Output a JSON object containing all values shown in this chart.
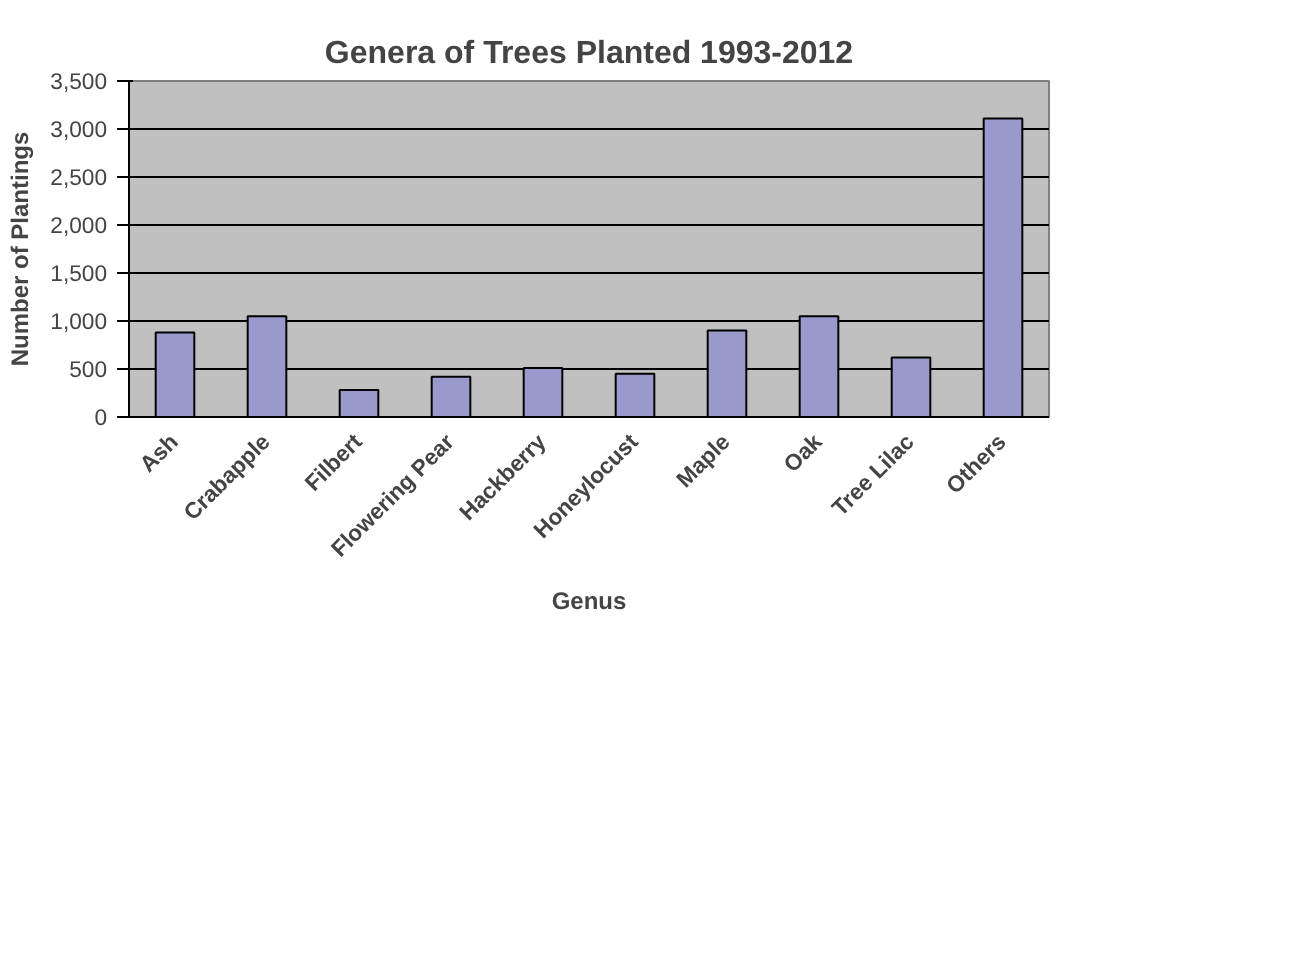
{
  "chart_data": {
    "type": "bar",
    "title": "Genera of Trees Planted 1993-2012",
    "xlabel": "Genus",
    "ylabel": "Number of Plantings",
    "categories": [
      "Ash",
      "Crabapple",
      "Filbert",
      "Flowering Pear",
      "Hackberry",
      "Honeylocust",
      "Maple",
      "Oak",
      "Tree Lilac",
      "Others"
    ],
    "values": [
      880,
      1050,
      280,
      420,
      510,
      450,
      900,
      1050,
      620,
      3110
    ],
    "color": "#9999cc",
    "ylim": [
      0,
      3500
    ],
    "yticks": [
      0,
      {
        "value": 500,
        "label": "500"
      },
      {
        "value": 1000,
        "label": "1,000"
      },
      {
        "value": 1500,
        "label": "1,500"
      },
      {
        "value": 2000,
        "label": "2,000"
      },
      {
        "value": 2500,
        "label": "2,500"
      },
      {
        "value": 3000,
        "label": "3,000"
      },
      {
        "value": 3500,
        "label": "3,500"
      }
    ],
    "grid": "y"
  }
}
